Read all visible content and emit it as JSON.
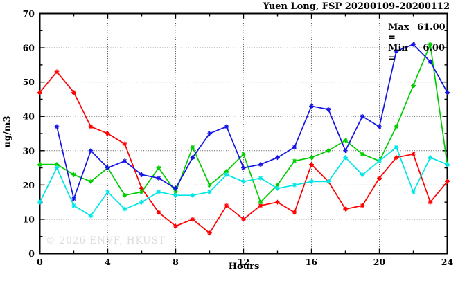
{
  "chart_data": {
    "type": "line",
    "title": "Yuen Long, FSP 20200109–20200112",
    "xlabel": "Hours",
    "ylabel": "ug/m3",
    "xlim": [
      0,
      24
    ],
    "ylim": [
      0,
      70
    ],
    "x_major_ticks": [
      0,
      4,
      8,
      12,
      16,
      20,
      24
    ],
    "x_minor_ticks": [
      2,
      6,
      10,
      14,
      18,
      22
    ],
    "y_major_ticks": [
      0,
      10,
      20,
      30,
      40,
      50,
      60,
      70
    ],
    "y_minor_ticks": [
      5,
      15,
      25,
      35,
      45,
      55,
      65
    ],
    "grid": "dotted at major ticks",
    "legend_position": "top-right stats box",
    "stats": {
      "max": {
        "label": "Max =",
        "value": "61.00"
      },
      "min": {
        "label": "Min =",
        "value": "6.00"
      }
    },
    "watermark": "© 2026 ENVF, HKUST",
    "watermark_color": "#dcdcdc",
    "x": [
      0,
      1,
      2,
      3,
      4,
      5,
      6,
      7,
      8,
      9,
      10,
      11,
      12,
      13,
      14,
      15,
      16,
      17,
      18,
      19,
      20,
      21,
      22,
      23,
      24
    ],
    "series": [
      {
        "name": "red-line",
        "color": "#ff0000",
        "values": [
          47,
          53,
          47,
          37,
          35,
          32,
          19,
          12,
          8,
          10,
          6,
          14,
          10,
          14,
          15,
          12,
          26,
          21,
          13,
          14,
          22,
          28,
          29,
          15,
          21
        ]
      },
      {
        "name": "green-line",
        "color": "#00cc00",
        "values": [
          26,
          26,
          23,
          21,
          25,
          17,
          18,
          25,
          18,
          31,
          20,
          24,
          29,
          15,
          20,
          27,
          28,
          30,
          33,
          29,
          27,
          37,
          49,
          61,
          26
        ]
      },
      {
        "name": "blue-line",
        "color": "#1414e6",
        "values": [
          null,
          37,
          16,
          30,
          25,
          27,
          23,
          22,
          19,
          28,
          35,
          37,
          25,
          26,
          28,
          31,
          43,
          42,
          30,
          40,
          37,
          59,
          61,
          56,
          47
        ]
      },
      {
        "name": "cyan-line",
        "color": "#00e6e6",
        "values": [
          15,
          25,
          14,
          11,
          18,
          13,
          15,
          18,
          17,
          17,
          18,
          23,
          21,
          22,
          19,
          20,
          21,
          21,
          28,
          23,
          27,
          31,
          18,
          28,
          26
        ]
      }
    ]
  }
}
